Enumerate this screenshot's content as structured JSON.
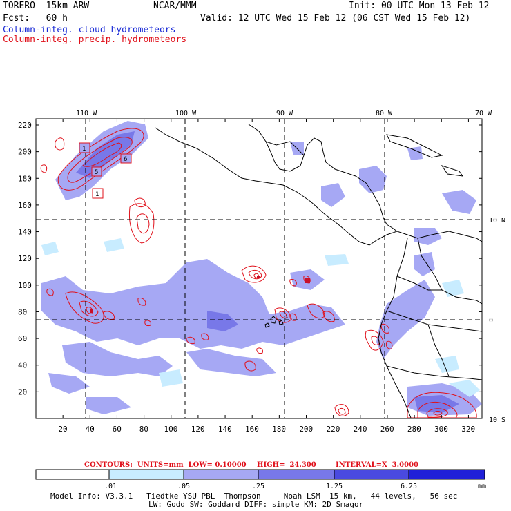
{
  "header": {
    "model": "TORERO  15km ARW",
    "org": "NCAR/MMM",
    "init": "Init: 00 UTC Mon 13 Feb 12",
    "fcst": "Fcst:   60 h",
    "valid": "Valid: 12 UTC Wed 15 Feb 12 (06 CST Wed 15 Feb 12)",
    "field1": "Column-integ. cloud hydrometeors",
    "field2": "Column-integ. precip. hydrometeors"
  },
  "map": {
    "lon_labels": [
      "110 W",
      "100 W",
      "90 W",
      "80 W",
      "70 W"
    ],
    "lat_labels": [
      "10 N",
      "0",
      "10 S"
    ],
    "y_ticks": [
      "220",
      "200",
      "180",
      "160",
      "140",
      "120",
      "100",
      "80",
      "60",
      "40",
      "20"
    ],
    "x_ticks": [
      "20",
      "40",
      "60",
      "80",
      "100",
      "120",
      "140",
      "160",
      "180",
      "200",
      "220",
      "240",
      "260",
      "280",
      "300",
      "320"
    ],
    "storm_markers": [
      "1",
      "5",
      "6",
      "1",
      "3"
    ],
    "colors": {
      "cloud_light": "#c8ecff",
      "cloud_mid": "#a6a8f4",
      "cloud_dark": "#7878e8",
      "precip": "#e0101a",
      "grid": "#000000"
    }
  },
  "contours_info": {
    "units": "CONTOURS:  UNITS=mm  LOW= 0.10000",
    "high": "HIGH=  24.300",
    "interval": "INTERVAL=X  3.0000"
  },
  "colorbar": {
    "labels": [
      ".01",
      ".05",
      ".25",
      "1.25",
      "6.25"
    ],
    "unit": "mm",
    "colors": [
      "#ffffff",
      "#c8ecff",
      "#a6a8f4",
      "#7878e8",
      "#4a4ae0",
      "#2020d8"
    ]
  },
  "footer": {
    "line1": "Model Info: V3.3.1   Tiedtke YSU PBL  Thompson     Noah LSM  15 km,   44 levels,   56 sec",
    "line2": "LW: Godd SW: Goddard DIFF: simple KM: 2D Smagor"
  }
}
